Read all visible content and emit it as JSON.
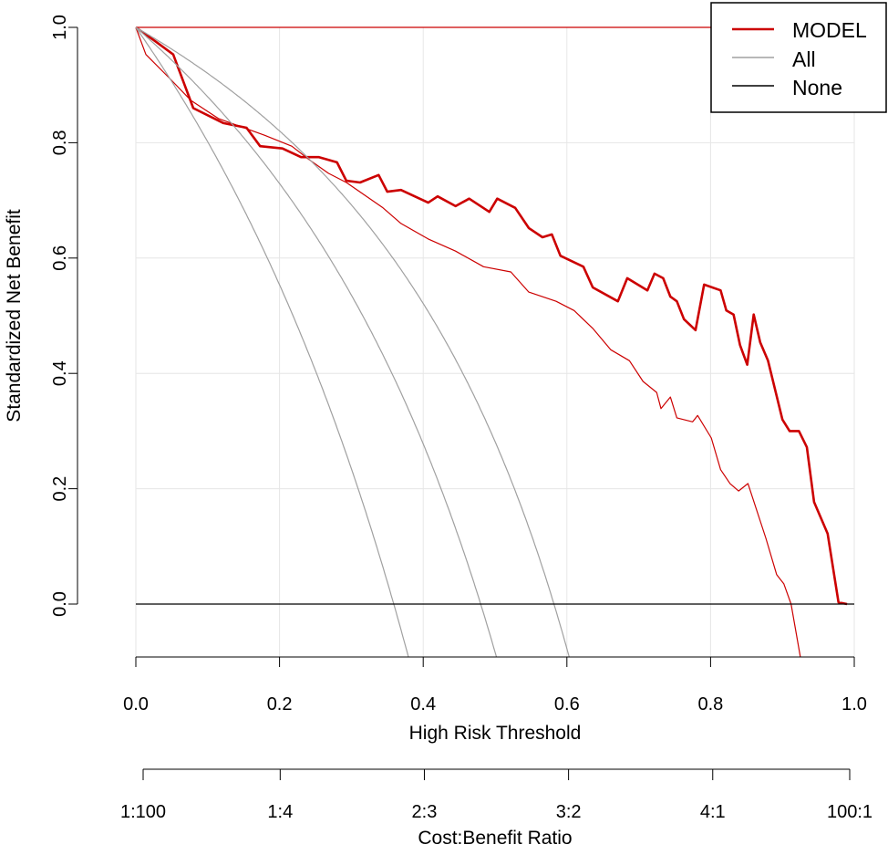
{
  "chart_data": {
    "type": "line",
    "title": "",
    "xlabel": "High Risk Threshold",
    "ylabel": "Standardized Net Benefit",
    "xlim": [
      0,
      1
    ],
    "ylim": [
      -0.092,
      1.0
    ],
    "grid": true,
    "x_ticks": [
      0.0,
      0.2,
      0.4,
      0.6,
      0.8,
      1.0
    ],
    "x_tick_labels": [
      "0.0",
      "0.2",
      "0.4",
      "0.6",
      "0.8",
      "1.0"
    ],
    "y_ticks": [
      0.0,
      0.2,
      0.4,
      0.6,
      0.8,
      1.0
    ],
    "y_tick_labels": [
      "0.0",
      "0.2",
      "0.4",
      "0.6",
      "0.8",
      "1.0"
    ],
    "secondary_axis": {
      "label": "Cost:Benefit Ratio",
      "ticks": [
        0.0099,
        0.2,
        0.4,
        0.6,
        0.8,
        0.99
      ],
      "tick_labels": [
        "1:100",
        "1:4",
        "2:3",
        "3:2",
        "4:1",
        "100:1"
      ]
    },
    "legend": {
      "placement": "top-right",
      "entries": [
        {
          "label": "MODEL",
          "color": "#cc0000"
        },
        {
          "label": "All",
          "color": "#a0a0a0"
        },
        {
          "label": "None",
          "color": "#000000"
        }
      ]
    },
    "series": [
      {
        "name": "MODEL",
        "color": "#cc0000",
        "style": "thick",
        "x": [
          0,
          0.027,
          0.052,
          0.08,
          0.122,
          0.154,
          0.173,
          0.204,
          0.23,
          0.255,
          0.28,
          0.293,
          0.312,
          0.338,
          0.35,
          0.369,
          0.407,
          0.42,
          0.445,
          0.464,
          0.492,
          0.503,
          0.528,
          0.547,
          0.566,
          0.579,
          0.591,
          0.623,
          0.636,
          0.671,
          0.684,
          0.712,
          0.722,
          0.734,
          0.744,
          0.753,
          0.763,
          0.779,
          0.791,
          0.814,
          0.822,
          0.832,
          0.841,
          0.851,
          0.86,
          0.869,
          0.88,
          0.9,
          0.91,
          0.923,
          0.934,
          0.944,
          0.963,
          0.978,
          0.99
        ],
        "y": [
          1.0,
          0.976,
          0.953,
          0.86,
          0.834,
          0.826,
          0.794,
          0.79,
          0.775,
          0.775,
          0.766,
          0.734,
          0.731,
          0.744,
          0.715,
          0.718,
          0.696,
          0.707,
          0.69,
          0.703,
          0.68,
          0.703,
          0.687,
          0.652,
          0.636,
          0.641,
          0.604,
          0.585,
          0.549,
          0.525,
          0.565,
          0.544,
          0.573,
          0.565,
          0.533,
          0.525,
          0.494,
          0.475,
          0.554,
          0.544,
          0.509,
          0.502,
          0.449,
          0.415,
          0.502,
          0.454,
          0.422,
          0.32,
          0.3,
          0.3,
          0.272,
          0.177,
          0.122,
          0.003,
          0.0
        ]
      },
      {
        "name": "",
        "color": "#cc0000",
        "style": "thin",
        "x": [
          0,
          0.014,
          0.046,
          0.077,
          0.115,
          0.179,
          0.217,
          0.242,
          0.268,
          0.293,
          0.344,
          0.369,
          0.407,
          0.445,
          0.484,
          0.522,
          0.547,
          0.585,
          0.61,
          0.636,
          0.661,
          0.687,
          0.706,
          0.725,
          0.731,
          0.744,
          0.753,
          0.775,
          0.782,
          0.801,
          0.814,
          0.827,
          0.839,
          0.852,
          0.877,
          0.892,
          0.902,
          0.912,
          0.925
        ],
        "y": [
          1.0,
          0.953,
          0.913,
          0.873,
          0.842,
          0.813,
          0.794,
          0.77,
          0.747,
          0.731,
          0.687,
          0.66,
          0.633,
          0.612,
          0.585,
          0.576,
          0.541,
          0.525,
          0.509,
          0.478,
          0.441,
          0.422,
          0.386,
          0.367,
          0.339,
          0.359,
          0.323,
          0.316,
          0.327,
          0.288,
          0.233,
          0.209,
          0.196,
          0.209,
          0.114,
          0.051,
          0.035,
          0.0,
          -0.092
        ]
      },
      {
        "name": "",
        "color": "#cc0000",
        "style": "thin",
        "x": [
          0,
          1
        ],
        "y": [
          1.0,
          1.0
        ]
      },
      {
        "name": "All",
        "color": "#a0a0a0",
        "style": "thin",
        "formula_prevalence": [
          0.359,
          0.48,
          0.582
        ]
      },
      {
        "name": "None",
        "color": "#000000",
        "style": "thin",
        "x": [
          0,
          1
        ],
        "y": [
          0,
          0
        ]
      }
    ]
  }
}
